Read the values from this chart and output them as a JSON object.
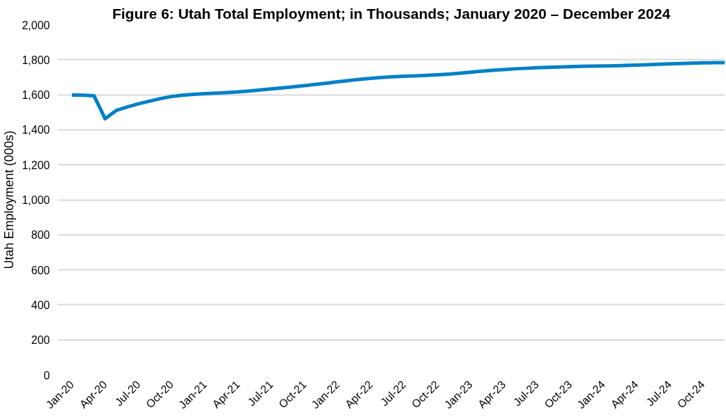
{
  "chart_data": {
    "type": "line",
    "title": "Figure 6: Utah Total Employment; in Thousands; January 2020 – December 2024",
    "ylabel": "Utah Employment (000s)",
    "categories": [
      "Jan-20",
      null,
      null,
      "Apr-20",
      null,
      null,
      "Jul-20",
      null,
      null,
      "Oct-20",
      null,
      null,
      "Jan-21",
      null,
      null,
      "Apr-21",
      null,
      null,
      "Jul-21",
      null,
      null,
      "Oct-21",
      null,
      null,
      "Jan-22",
      null,
      null,
      "Apr-22",
      null,
      null,
      "Jul-22",
      null,
      null,
      "Oct-22",
      null,
      null,
      "Jan-23",
      null,
      null,
      "Apr-23",
      null,
      null,
      "Jul-23",
      null,
      null,
      "Oct-23",
      null,
      null,
      "Jan-24",
      null,
      null,
      "Apr-24",
      null,
      null,
      "Jul-24",
      null,
      null,
      "Oct-24",
      null,
      null
    ],
    "series": [
      {
        "color": "#0080c6",
        "values": [
          1598,
          1597,
          1594,
          1463,
          1510,
          1530,
          1548,
          1563,
          1578,
          1590,
          1597,
          1602,
          1606,
          1609,
          1612,
          1616,
          1621,
          1627,
          1633,
          1639,
          1645,
          1652,
          1659,
          1666,
          1674,
          1681,
          1688,
          1694,
          1699,
          1703,
          1706,
          1708,
          1711,
          1714,
          1718,
          1723,
          1729,
          1735,
          1740,
          1744,
          1748,
          1751,
          1754,
          1756,
          1758,
          1760,
          1762,
          1763,
          1764,
          1765,
          1767,
          1769,
          1771,
          1774,
          1776,
          1778,
          1780,
          1782,
          1783,
          1783
        ]
      }
    ],
    "ylim": [
      0,
      2000
    ],
    "yticks": [
      {
        "value": 0,
        "label": "0"
      },
      {
        "value": 200,
        "label": "200"
      },
      {
        "value": 400,
        "label": "400"
      },
      {
        "value": 600,
        "label": "600"
      },
      {
        "value": 800,
        "label": "800"
      },
      {
        "value": 1000,
        "label": "1,000"
      },
      {
        "value": 1200,
        "label": "1,200"
      },
      {
        "value": 1400,
        "label": "1,400"
      },
      {
        "value": 1600,
        "label": "1,600"
      },
      {
        "value": 1800,
        "label": "1,800"
      },
      {
        "value": 2000,
        "label": "2,000"
      }
    ],
    "grid": "y",
    "marker": "none",
    "line_style": "solid"
  }
}
